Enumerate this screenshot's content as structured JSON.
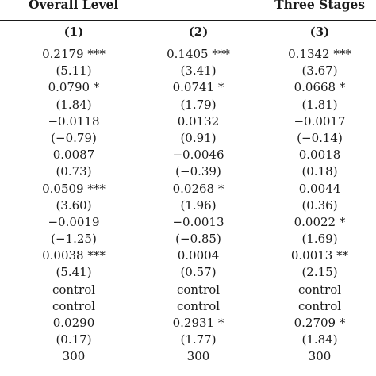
{
  "header": {
    "group_left": "Overall Level",
    "group_right": "Three Stages"
  },
  "columns": [
    "(1)",
    "(2)",
    "(3)"
  ],
  "rows": [
    [
      "0.2179 ***",
      "0.1405 ***",
      "0.1342 ***"
    ],
    [
      "(5.11)",
      "(3.41)",
      "(3.67)"
    ],
    [
      "0.0790 *",
      "0.0741 *",
      "0.0668 *"
    ],
    [
      "(1.84)",
      "(1.79)",
      "(1.81)"
    ],
    [
      "−0.0118",
      "0.0132",
      "−0.0017"
    ],
    [
      "(−0.79)",
      "(0.91)",
      "(−0.14)"
    ],
    [
      "0.0087",
      "−0.0046",
      "0.0018"
    ],
    [
      "(0.73)",
      "(−0.39)",
      "(0.18)"
    ],
    [
      "0.0509 ***",
      "0.0268 *",
      "0.0044"
    ],
    [
      "(3.60)",
      "(1.96)",
      "(0.36)"
    ],
    [
      "−0.0019",
      "−0.0013",
      "0.0022 *"
    ],
    [
      "(−1.25)",
      "(−0.85)",
      "(1.69)"
    ],
    [
      "0.0038 ***",
      "0.0004",
      "0.0013 **"
    ],
    [
      "(5.41)",
      "(0.57)",
      "(2.15)"
    ],
    [
      "control",
      "control",
      "control"
    ],
    [
      "control",
      "control",
      "control"
    ],
    [
      "0.0290",
      "0.2931 *",
      "0.2709 *"
    ],
    [
      "(0.17)",
      "(1.77)",
      "(1.84)"
    ],
    [
      "300",
      "300",
      "300"
    ]
  ]
}
